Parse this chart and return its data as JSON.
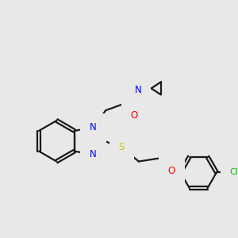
{
  "background_color": "#e8e8e8",
  "bond_color": "#1a1a1a",
  "bond_width": 1.6,
  "atom_colors": {
    "N": "#0000ff",
    "O": "#ff0000",
    "S": "#cccc00",
    "Cl": "#00bb00",
    "H": "#008080",
    "C": "#1a1a1a"
  },
  "font_size_atom": 8.5,
  "font_size_small": 7.0,
  "font_size_cl": 8.0
}
